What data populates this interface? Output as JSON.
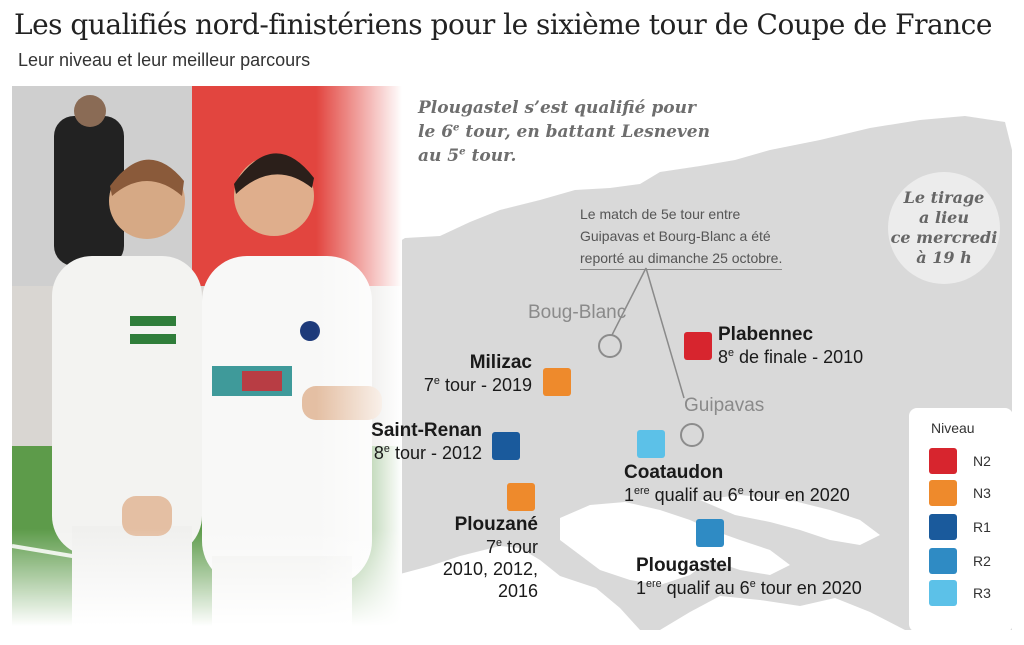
{
  "header": {
    "title": "Les qualifiés nord-finistériens pour le sixième tour de Coupe de France",
    "subtitle": "Leur niveau et leur meilleur parcours"
  },
  "notes": {
    "plougastel_note": [
      "Plougastel s’est qualifié pour",
      "le 6",
      "e",
      " tour, en battant Lesneven",
      "au 5",
      "e",
      " tour."
    ],
    "tirage": [
      "Le tirage",
      "a lieu",
      "ce mercredi",
      "à 19 h"
    ],
    "match_note": [
      "Le match de 5e tour entre",
      "Guipavas et Bourg-Blanc a été",
      "reporté au dimanche 25 octobre."
    ]
  },
  "towns": {
    "plabennec": {
      "name": "Plabennec",
      "info_pre": "8",
      "info_sup": "e",
      "info_post": " de finale - 2010",
      "level": "N2"
    },
    "milizac": {
      "name": "Milizac",
      "info_pre": "7",
      "info_sup": "e",
      "info_post": " tour - 2019",
      "level": "N3"
    },
    "saint_renan": {
      "name": "Saint-Renan",
      "info_pre": "8",
      "info_sup": "e",
      "info_post": " tour - 2012",
      "level": "R1"
    },
    "coataudon": {
      "name": "Coataudon",
      "info_pre": "1",
      "info_sup": "ere",
      "info_mid": " qualif au 6",
      "info_sup2": "e",
      "info_post": " tour en 2020",
      "level": "R3"
    },
    "plouzane": {
      "name": "Plouzané",
      "lines_pre": "7",
      "lines_sup": "e",
      "lines_post": " tour",
      "line2": "2010, 2012,",
      "line3": "2016",
      "level": "N3"
    },
    "plougastel": {
      "name": "Plougastel",
      "info_pre": "1",
      "info_sup": "ere",
      "info_mid": " qualif au 6",
      "info_sup2": "e",
      "info_post": " tour en 2020",
      "level": "R2"
    },
    "bourg_blanc": {
      "name": "Boug-Blanc"
    },
    "guipavas": {
      "name": "Guipavas"
    }
  },
  "legend": {
    "title": "Niveau",
    "items": [
      {
        "label": "N2",
        "color": "#d7252e"
      },
      {
        "label": "N3",
        "color": "#ee8a2c"
      },
      {
        "label": "R1",
        "color": "#1a5a9c"
      },
      {
        "label": "R2",
        "color": "#2f8bc4"
      },
      {
        "label": "R3",
        "color": "#5cc1e8"
      }
    ]
  },
  "colors": {
    "land": "#d9d9d9",
    "sea": "#ffffff",
    "photo_grass": "#5d9b4a",
    "photo_red": "#e2453f"
  }
}
